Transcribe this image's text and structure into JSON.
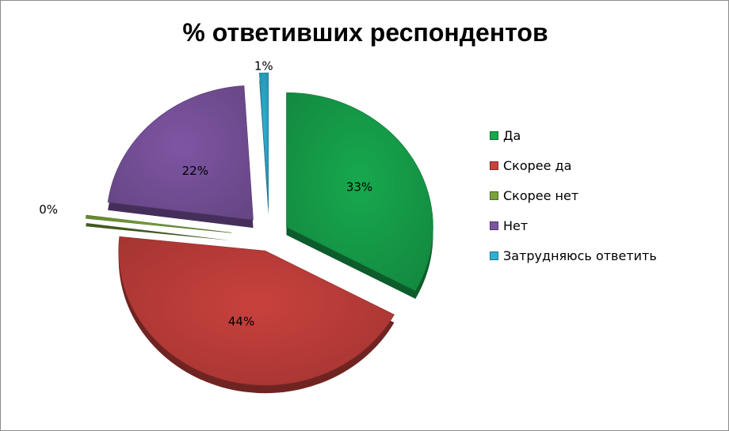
{
  "chart_data": {
    "type": "pie",
    "title": "% ответивших респондентов",
    "categories": [
      "Да",
      "Скорее да",
      "Скорее нет",
      "Нет",
      "Затрудняюсь ответить"
    ],
    "values": [
      33,
      44,
      0.4,
      22,
      1
    ],
    "data_labels": [
      "33%",
      "44%",
      "0%",
      "22%",
      "1%"
    ],
    "colors": [
      "#17a84e",
      "#c9413d",
      "#77a23a",
      "#7e55a3",
      "#2fb0d3"
    ],
    "legend_position": "right",
    "exploded": true
  }
}
